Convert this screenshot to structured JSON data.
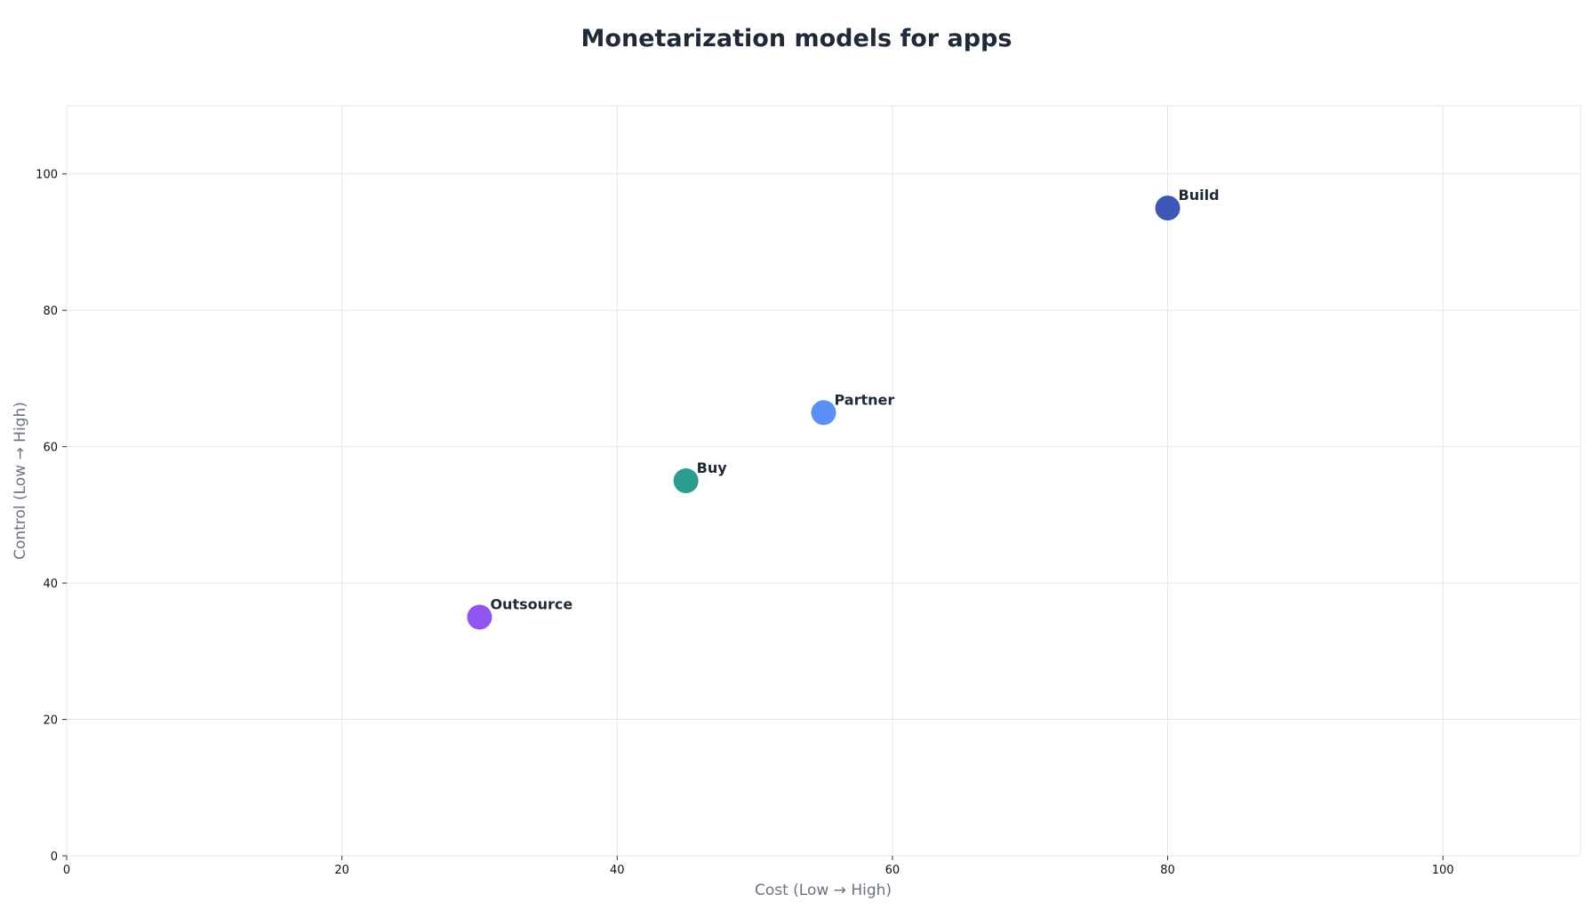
{
  "chart_data": {
    "type": "scatter",
    "title": "Monetarization models for apps",
    "xlabel": "Cost (Low → High)",
    "ylabel": "Control (Low → High)",
    "xlim": [
      0,
      110
    ],
    "ylim": [
      0,
      110
    ],
    "xticks": [
      0,
      20,
      40,
      60,
      80,
      100
    ],
    "yticks": [
      0,
      20,
      40,
      60,
      80,
      100
    ],
    "grid": true,
    "points": [
      {
        "label": "Outsource",
        "x": 30,
        "y": 35,
        "color": "#9155f2"
      },
      {
        "label": "Buy",
        "x": 45,
        "y": 55,
        "color": "#2a9d8f"
      },
      {
        "label": "Partner",
        "x": 55,
        "y": 65,
        "color": "#5b8ff9"
      },
      {
        "label": "Build",
        "x": 80,
        "y": 95,
        "color": "#3d56b8"
      }
    ]
  }
}
